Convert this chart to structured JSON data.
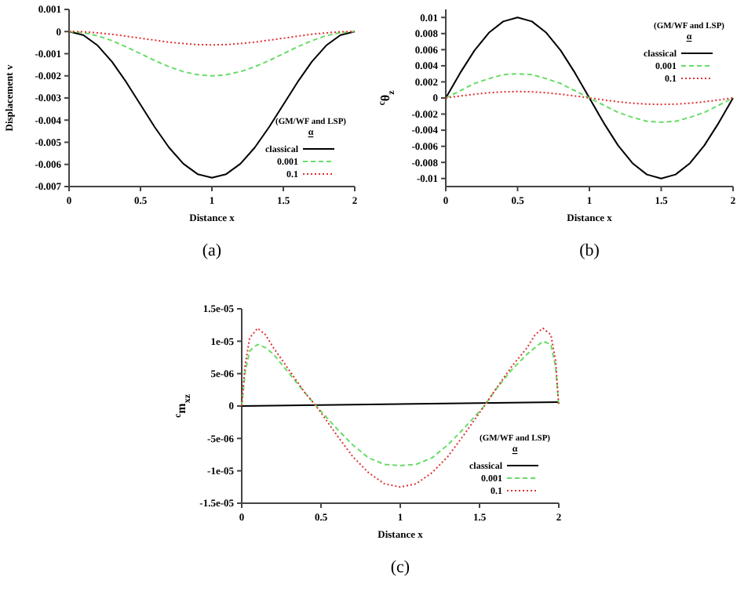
{
  "chart_data": [
    {
      "type": "line",
      "xlabel": "Distance x",
      "ylabel": "Displacement v",
      "legend_title": "(GM/WF and LSP) α",
      "legend": "bottom right",
      "annotations": [
        "(a)"
      ],
      "x": [
        0,
        0.1,
        0.2,
        0.3,
        0.4,
        0.5,
        0.6,
        0.7,
        0.8,
        0.9,
        1,
        1.1,
        1.2,
        1.3,
        1.4,
        1.5,
        1.6,
        1.7,
        1.8,
        1.9,
        2
      ],
      "xlim": [
        0,
        2
      ],
      "xticks": [
        0,
        0.5,
        1,
        1.5,
        2
      ],
      "ylim": [
        -0.007,
        0.001
      ],
      "yticks": [
        -0.007,
        -0.006,
        -0.005,
        -0.004,
        -0.003,
        -0.002,
        -0.001,
        0,
        0.001
      ],
      "series": [
        {
          "name": "classical",
          "color": "#000000",
          "line_style": "solid",
          "values": [
            0,
            -0.00016,
            -0.00063,
            -0.00136,
            -0.00228,
            -0.0033,
            -0.00432,
            -0.00524,
            -0.00597,
            -0.00644,
            -0.0066,
            -0.00644,
            -0.00597,
            -0.00524,
            -0.00432,
            -0.0033,
            -0.00228,
            -0.00136,
            -0.00063,
            -0.00016,
            0
          ]
        },
        {
          "name": "0.001",
          "color": "#66dd66",
          "line_style": "dashed",
          "values": [
            0,
            -5e-05,
            -0.00019,
            -0.00041,
            -0.00069,
            -0.001,
            -0.00131,
            -0.00159,
            -0.00181,
            -0.00195,
            -0.002,
            -0.00195,
            -0.00181,
            -0.00159,
            -0.00131,
            -0.001,
            -0.00069,
            -0.00041,
            -0.00019,
            -5e-05,
            0
          ]
        },
        {
          "name": "0.1",
          "color": "#e03030",
          "line_style": "dotted",
          "values": [
            0,
            -1e-05,
            -6e-05,
            -0.00012,
            -0.00021,
            -0.0003,
            -0.00039,
            -0.00048,
            -0.00054,
            -0.00059,
            -0.0006,
            -0.00059,
            -0.00054,
            -0.00048,
            -0.00039,
            -0.0003,
            -0.00021,
            -0.00012,
            -6e-05,
            -1e-05,
            0
          ]
        }
      ]
    },
    {
      "type": "line",
      "xlabel": "Distance x",
      "ylabel": "$^{c}$θ$_{z}$",
      "legend_title": "(GM/WF and LSP) α",
      "legend": "top right",
      "annotations": [
        "(b)"
      ],
      "x": [
        0,
        0.1,
        0.2,
        0.3,
        0.4,
        0.5,
        0.6,
        0.7,
        0.8,
        0.9,
        1,
        1.1,
        1.2,
        1.3,
        1.4,
        1.5,
        1.6,
        1.7,
        1.8,
        1.9,
        2
      ],
      "xlim": [
        0,
        2
      ],
      "xticks": [
        0,
        0.5,
        1,
        1.5,
        2
      ],
      "ylim": [
        -0.011,
        0.011
      ],
      "yticks": [
        -0.01,
        -0.008,
        -0.006,
        -0.004,
        -0.002,
        0,
        0.002,
        0.004,
        0.006,
        0.008,
        0.01
      ],
      "series": [
        {
          "name": "classical",
          "color": "#000000",
          "line_style": "solid",
          "values": [
            0,
            0.0031,
            0.0059,
            0.0081,
            0.0095,
            0.01,
            0.0095,
            0.0081,
            0.0059,
            0.0031,
            0,
            -0.0031,
            -0.0059,
            -0.0081,
            -0.0095,
            -0.01,
            -0.0095,
            -0.0081,
            -0.0059,
            -0.0031,
            0
          ]
        },
        {
          "name": "0.001",
          "color": "#66dd66",
          "line_style": "dashed",
          "values": [
            0,
            0.0009,
            0.0018,
            0.0024,
            0.0029,
            0.003,
            0.0029,
            0.0024,
            0.0018,
            0.0009,
            0,
            -0.0009,
            -0.0018,
            -0.0024,
            -0.0029,
            -0.003,
            -0.0029,
            -0.0024,
            -0.0018,
            -0.0009,
            0
          ]
        },
        {
          "name": "0.1",
          "color": "#e03030",
          "line_style": "dotted",
          "values": [
            0,
            0.00025,
            0.00047,
            0.00065,
            0.00076,
            0.0008,
            0.00076,
            0.00065,
            0.00047,
            0.00025,
            0,
            -0.00025,
            -0.00047,
            -0.00065,
            -0.00076,
            -0.0008,
            -0.00076,
            -0.00065,
            -0.00047,
            -0.00025,
            0
          ]
        }
      ]
    },
    {
      "type": "line",
      "xlabel": "Distance x",
      "ylabel": "$^{c}$m$_{xz}$",
      "legend_title": "(GM/WF and LSP) α",
      "legend": "bottom right",
      "annotations": [
        "(c)"
      ],
      "x": [
        0,
        0.02,
        0.05,
        0.1,
        0.15,
        0.2,
        0.3,
        0.4,
        0.47,
        0.6,
        0.7,
        0.8,
        0.9,
        1,
        1.1,
        1.2,
        1.3,
        1.4,
        1.53,
        1.6,
        1.7,
        1.8,
        1.85,
        1.9,
        1.95,
        1.98,
        2
      ],
      "xlim": [
        0,
        2
      ],
      "xticks": [
        0,
        0.5,
        1,
        1.5,
        2
      ],
      "ylim": [
        -1.5e-05,
        1.5e-05
      ],
      "yticks": [
        {
          "value": -1.5e-05,
          "label": "-1.5e-05"
        },
        {
          "value": -1e-05,
          "label": "-1e-05"
        },
        {
          "value": -5e-06,
          "label": "-5e-06"
        },
        0,
        {
          "value": 5e-06,
          "label": "5e-06"
        },
        {
          "value": 1e-05,
          "label": "1e-05"
        },
        {
          "value": 1.5e-05,
          "label": "1.5e-05"
        }
      ],
      "series": [
        {
          "name": "classical",
          "color": "#000000",
          "line_style": "solid",
          "x": [
            0,
            2
          ],
          "values": [
            0,
            6e-07
          ]
        },
        {
          "name": "0.001",
          "color": "#66dd66",
          "line_style": "dashed",
          "values": [
            0,
            5e-06,
            8.5e-06,
            9.5e-06,
            9e-06,
            8e-06,
            5e-06,
            2e-06,
            0,
            -3.5e-06,
            -6e-06,
            -8e-06,
            -9e-06,
            -9.2e-06,
            -9e-06,
            -8e-06,
            -6e-06,
            -3.5e-06,
            0,
            2.5e-06,
            5.5e-06,
            8e-06,
            9e-06,
            1e-05,
            9.5e-06,
            6e-06,
            0
          ]
        },
        {
          "name": "0.1",
          "color": "#e03030",
          "line_style": "dotted",
          "values": [
            0,
            6e-06,
            1.05e-05,
            1.2e-05,
            1.1e-05,
            9e-06,
            5.5e-06,
            2e-06,
            0,
            -4.5e-06,
            -7.8e-06,
            -1.03e-05,
            -1.2e-05,
            -1.25e-05,
            -1.2e-05,
            -1.03e-05,
            -7.8e-06,
            -4.5e-06,
            0,
            2.5e-06,
            6e-06,
            9e-06,
            1.1e-05,
            1.2e-05,
            1.1e-05,
            7e-06,
            0
          ]
        }
      ]
    }
  ]
}
